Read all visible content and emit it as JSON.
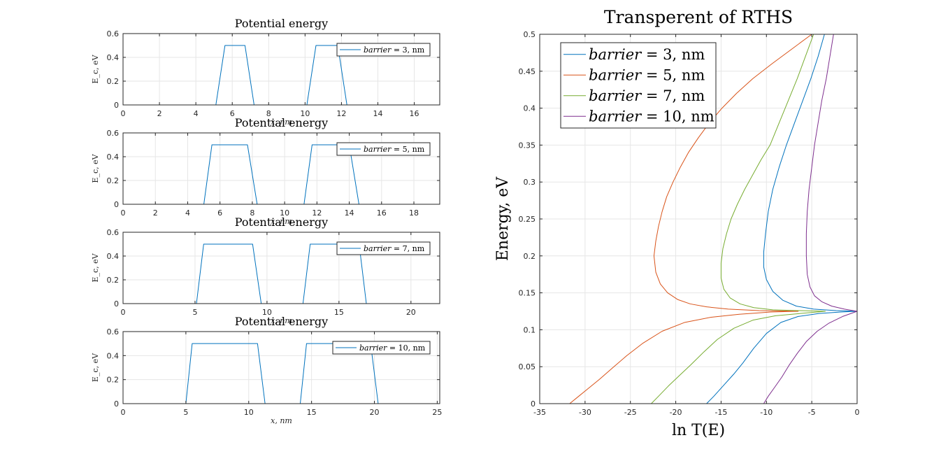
{
  "colors": {
    "blue": "#0072bd",
    "orange": "#d95319",
    "yellowgreen": "#77ac30",
    "purple": "#7e2f8e",
    "grid": "#e6e6e6",
    "axis": "#262626"
  },
  "chart_data": [
    {
      "type": "line",
      "title": "Potential energy",
      "xlabel": "x, nm",
      "ylabel": "E_c, eV",
      "xlim": [
        0,
        17.4
      ],
      "ylim": [
        0,
        0.6
      ],
      "xticks": [
        0,
        2,
        4,
        6,
        8,
        10,
        12,
        14,
        16
      ],
      "yticks": [
        0,
        0.2,
        0.4,
        0.6
      ],
      "grid": true,
      "legend_position": "top-right",
      "series": [
        {
          "name": "barrier = 3, nm",
          "x": [
            0,
            5.1,
            5.6,
            6.7,
            7.2,
            10.1,
            10.6,
            11.8,
            12.3,
            17.4
          ],
          "y": [
            0,
            0,
            0.5,
            0.5,
            0,
            0,
            0.5,
            0.5,
            0,
            0
          ]
        }
      ]
    },
    {
      "type": "line",
      "title": "Potential energy",
      "xlabel": "x, nm",
      "ylabel": "E_c, eV",
      "xlim": [
        0,
        19.6
      ],
      "ylim": [
        0,
        0.6
      ],
      "xticks": [
        0,
        2,
        4,
        6,
        8,
        10,
        12,
        14,
        16,
        18
      ],
      "yticks": [
        0,
        0.2,
        0.4,
        0.6
      ],
      "grid": true,
      "legend_position": "top-right",
      "series": [
        {
          "name": "barrier = 5, nm",
          "x": [
            0,
            5.0,
            5.5,
            7.7,
            8.3,
            11.2,
            11.7,
            14.0,
            14.6,
            19.6
          ],
          "y": [
            0,
            0,
            0.5,
            0.5,
            0,
            0,
            0.5,
            0.5,
            0,
            0
          ]
        }
      ]
    },
    {
      "type": "line",
      "title": "Potential energy",
      "xlabel": "x, nm",
      "ylabel": "E_c, eV",
      "xlim": [
        0,
        22
      ],
      "ylim": [
        0,
        0.6
      ],
      "xticks": [
        0,
        5,
        10,
        15,
        20
      ],
      "yticks": [
        0,
        0.2,
        0.4,
        0.6
      ],
      "grid": true,
      "legend_position": "top-right",
      "series": [
        {
          "name": "barrier = 7, nm",
          "x": [
            0,
            5.1,
            5.6,
            9.0,
            9.6,
            12.5,
            13.0,
            16.4,
            16.9,
            22
          ],
          "y": [
            0,
            0,
            0.5,
            0.5,
            0,
            0,
            0.5,
            0.5,
            0,
            0
          ]
        }
      ]
    },
    {
      "type": "line",
      "title": "Potential energy",
      "xlabel": "x, nm",
      "ylabel": "E_c, eV",
      "xlim": [
        0,
        25.2
      ],
      "ylim": [
        0,
        0.6
      ],
      "xticks": [
        0,
        5,
        10,
        15,
        20,
        25
      ],
      "yticks": [
        0,
        0.2,
        0.4,
        0.6
      ],
      "grid": true,
      "legend_position": "top-right",
      "series": [
        {
          "name": "barrier = 10, nm",
          "x": [
            0,
            5.0,
            5.5,
            10.7,
            11.3,
            14.1,
            14.6,
            19.7,
            20.3,
            25.2
          ],
          "y": [
            0,
            0,
            0.5,
            0.5,
            0,
            0,
            0.5,
            0.5,
            0,
            0
          ]
        }
      ]
    },
    {
      "type": "line",
      "title": "Transperent of RTHS",
      "xlabel": "ln T(E)",
      "ylabel": "Energy, eV",
      "xlim": [
        -35,
        0
      ],
      "ylim": [
        0,
        0.5
      ],
      "xticks": [
        -35,
        -30,
        -25,
        -20,
        -15,
        -10,
        -5,
        0
      ],
      "yticks": [
        0,
        0.05,
        0.1,
        0.15,
        0.2,
        0.25,
        0.3,
        0.35,
        0.4,
        0.45,
        0.5
      ],
      "grid": true,
      "legend_position": "top-left",
      "series": [
        {
          "name": "barrier = 3, nm",
          "x": [
            -16.6,
            -15.8,
            -14.7,
            -13.6,
            -12.6,
            -11.4,
            -10.0,
            -8.4,
            -6.5,
            -4.2,
            -1.8,
            0,
            -2.3,
            -4.8,
            -6.7,
            -8.2,
            -9.3,
            -10.0,
            -10.3,
            -10.3,
            -10.1,
            -9.8,
            -9.3,
            -8.6,
            -7.8,
            -6.9,
            -6.0,
            -5.1,
            -4.3,
            -3.6
          ],
          "y": [
            0,
            0.01,
            0.025,
            0.04,
            0.055,
            0.075,
            0.095,
            0.11,
            0.118,
            0.122,
            0.124,
            0.125,
            0.126,
            0.128,
            0.132,
            0.14,
            0.152,
            0.168,
            0.185,
            0.205,
            0.23,
            0.26,
            0.29,
            0.32,
            0.35,
            0.38,
            0.41,
            0.44,
            0.47,
            0.5
          ]
        },
        {
          "name": "barrier = 5, nm",
          "x": [
            -31.7,
            -30.9,
            -29.7,
            -28.4,
            -27.0,
            -25.4,
            -23.6,
            -21.5,
            -19.0,
            -16.1,
            -13.0,
            -9.5,
            -6.5,
            -10.8,
            -14.2,
            -16.6,
            -18.4,
            -19.8,
            -20.9,
            -21.7,
            -22.2,
            -22.4,
            -22.2,
            -21.9,
            -21.5,
            -21.0,
            -20.3,
            -19.5,
            -18.6,
            -17.5,
            -16.3,
            -14.9,
            -13.3,
            -11.5,
            -9.4,
            -7.2,
            -5.0
          ],
          "y": [
            0,
            0.008,
            0.02,
            0.033,
            0.048,
            0.065,
            0.082,
            0.098,
            0.11,
            0.117,
            0.121,
            0.124,
            0.125,
            0.126,
            0.128,
            0.131,
            0.135,
            0.141,
            0.15,
            0.162,
            0.178,
            0.2,
            0.22,
            0.24,
            0.26,
            0.28,
            0.3,
            0.32,
            0.34,
            0.36,
            0.38,
            0.4,
            0.42,
            0.44,
            0.46,
            0.48,
            0.5
          ]
        },
        {
          "name": "barrier = 7, nm",
          "x": [
            -22.7,
            -21.9,
            -20.8,
            -19.6,
            -18.3,
            -16.9,
            -15.4,
            -13.6,
            -11.5,
            -9.0,
            -6.3,
            -3.5,
            -6.6,
            -9.3,
            -11.4,
            -12.9,
            -14.0,
            -14.7,
            -15.0,
            -15.0,
            -14.8,
            -14.4,
            -13.9,
            -13.2,
            -12.4,
            -11.5,
            -10.6,
            -9.6,
            -8.6,
            -7.6,
            -6.6,
            -5.7,
            -4.8
          ],
          "y": [
            0,
            0.01,
            0.024,
            0.038,
            0.053,
            0.07,
            0.087,
            0.102,
            0.113,
            0.119,
            0.122,
            0.125,
            0.126,
            0.127,
            0.13,
            0.135,
            0.143,
            0.155,
            0.17,
            0.19,
            0.21,
            0.23,
            0.25,
            0.27,
            0.29,
            0.31,
            0.33,
            0.35,
            0.38,
            0.41,
            0.44,
            0.47,
            0.5
          ]
        },
        {
          "name": "barrier = 10, nm",
          "x": [
            -10.3,
            -9.8,
            -9.1,
            -8.3,
            -7.5,
            -6.6,
            -5.6,
            -4.4,
            -3.1,
            -1.6,
            0,
            -1.4,
            -2.8,
            -3.9,
            -4.7,
            -5.2,
            -5.5,
            -5.6,
            -5.6,
            -5.5,
            -5.3,
            -5.0,
            -4.7,
            -4.3,
            -3.9,
            -3.4,
            -3.0,
            -2.6
          ],
          "y": [
            0,
            0.01,
            0.022,
            0.036,
            0.052,
            0.068,
            0.084,
            0.098,
            0.109,
            0.118,
            0.125,
            0.128,
            0.132,
            0.138,
            0.146,
            0.158,
            0.175,
            0.2,
            0.23,
            0.26,
            0.29,
            0.32,
            0.35,
            0.38,
            0.41,
            0.44,
            0.47,
            0.5
          ]
        }
      ]
    }
  ]
}
